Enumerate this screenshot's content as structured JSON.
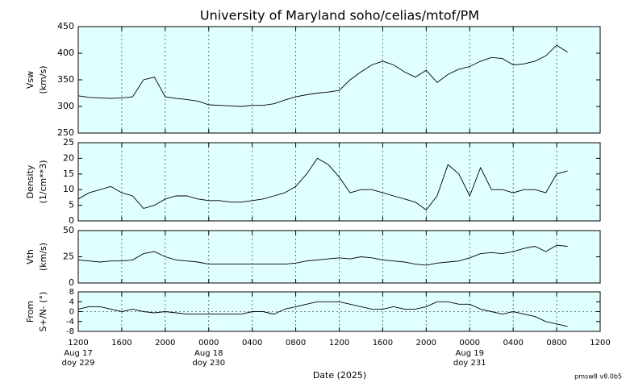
{
  "title": "University of Maryland  soho/celias/mtof/PM",
  "footnote": "pmsw8 v8.0b5",
  "x_axis": {
    "label": "Date (2025)",
    "xlim": [
      "2025-08-17T12:00",
      "2025-08-19T12:00"
    ],
    "xticks": [
      {
        "value": "2025-08-17T12:00",
        "label": "1200"
      },
      {
        "value": "2025-08-17T16:00",
        "label": "1600"
      },
      {
        "value": "2025-08-17T20:00",
        "label": "2000"
      },
      {
        "value": "2025-08-18T00:00",
        "label": "0000"
      },
      {
        "value": "2025-08-18T04:00",
        "label": "0400"
      },
      {
        "value": "2025-08-18T08:00",
        "label": "0800"
      },
      {
        "value": "2025-08-18T12:00",
        "label": "1200"
      },
      {
        "value": "2025-08-18T16:00",
        "label": "1600"
      },
      {
        "value": "2025-08-18T20:00",
        "label": "2000"
      },
      {
        "value": "2025-08-19T00:00",
        "label": "0000"
      },
      {
        "value": "2025-08-19T04:00",
        "label": "0400"
      },
      {
        "value": "2025-08-19T08:00",
        "label": "0800"
      },
      {
        "value": "2025-08-19T12:00",
        "label": "1200"
      }
    ],
    "dates": [
      {
        "value": "2025-08-17T12:00",
        "label": "Aug 17",
        "doy": "doy 229"
      },
      {
        "value": "2025-08-18T00:00",
        "label": "Aug 18",
        "doy": "doy 230"
      },
      {
        "value": "2025-08-19T00:00",
        "label": "Aug 19",
        "doy": "doy 231"
      }
    ],
    "x": [
      "2025-08-17T12:00",
      "2025-08-17T13:00",
      "2025-08-17T14:00",
      "2025-08-17T15:00",
      "2025-08-17T16:00",
      "2025-08-17T17:00",
      "2025-08-17T18:00",
      "2025-08-17T19:00",
      "2025-08-17T20:00",
      "2025-08-17T21:00",
      "2025-08-17T22:00",
      "2025-08-17T23:00",
      "2025-08-18T00:00",
      "2025-08-18T01:00",
      "2025-08-18T02:00",
      "2025-08-18T03:00",
      "2025-08-18T04:00",
      "2025-08-18T05:00",
      "2025-08-18T06:00",
      "2025-08-18T07:00",
      "2025-08-18T08:00",
      "2025-08-18T09:00",
      "2025-08-18T10:00",
      "2025-08-18T11:00",
      "2025-08-18T12:00",
      "2025-08-18T13:00",
      "2025-08-18T14:00",
      "2025-08-18T15:00",
      "2025-08-18T16:00",
      "2025-08-18T17:00",
      "2025-08-18T18:00",
      "2025-08-18T19:00",
      "2025-08-18T20:00",
      "2025-08-18T21:00",
      "2025-08-18T22:00",
      "2025-08-18T23:00",
      "2025-08-19T00:00",
      "2025-08-19T01:00",
      "2025-08-19T02:00",
      "2025-08-19T03:00",
      "2025-08-19T04:00",
      "2025-08-19T05:00",
      "2025-08-19T06:00",
      "2025-08-19T07:00",
      "2025-08-19T08:00",
      "2025-08-19T09:00"
    ]
  },
  "chart_data": [
    {
      "type": "line",
      "ylabel": [
        "Vsw",
        "(km/s)"
      ],
      "color": "#000000",
      "background": "#e0ffff",
      "grid": true,
      "ylim": [
        250,
        450
      ],
      "yticks": [
        250,
        300,
        350,
        400,
        450
      ],
      "values": [
        320,
        317,
        316,
        315,
        316,
        318,
        350,
        355,
        318,
        315,
        313,
        310,
        303,
        302,
        301,
        300,
        302,
        302,
        305,
        312,
        318,
        322,
        325,
        327,
        330,
        350,
        365,
        378,
        385,
        378,
        365,
        355,
        368,
        345,
        360,
        370,
        375,
        385,
        392,
        390,
        378,
        380,
        385,
        395,
        415,
        402
      ]
    },
    {
      "type": "line",
      "ylabel": [
        "Density",
        "(1/cm**3)"
      ],
      "color": "#000000",
      "background": "#e0ffff",
      "grid": true,
      "ylim": [
        0,
        25
      ],
      "yticks": [
        0,
        5,
        10,
        15,
        20,
        25
      ],
      "values": [
        7,
        9,
        10,
        11,
        9,
        8,
        4,
        5,
        7,
        8,
        8,
        7,
        6.5,
        6.5,
        6,
        6,
        6.5,
        7,
        8,
        9,
        11,
        15,
        20,
        18,
        14,
        9,
        10,
        10,
        9,
        8,
        7,
        6,
        3.5,
        8,
        18,
        15,
        8,
        17,
        10,
        10,
        9,
        10,
        10,
        9,
        15,
        16
      ]
    },
    {
      "type": "line",
      "ylabel": [
        "Vth",
        "(km/s)"
      ],
      "color": "#000000",
      "background": "#e0ffff",
      "grid": true,
      "ylim": [
        0,
        50
      ],
      "yticks": [
        0,
        25,
        50
      ],
      "values": [
        22,
        21,
        20,
        21,
        21,
        22,
        28,
        30,
        25,
        22,
        21,
        20,
        18,
        18,
        18,
        18,
        18,
        18,
        18,
        18,
        19,
        21,
        22,
        23,
        24,
        23,
        25,
        24,
        22,
        21,
        20,
        18,
        17,
        19,
        20,
        21,
        24,
        28,
        29,
        28,
        30,
        33,
        35,
        30,
        36,
        35
      ]
    },
    {
      "type": "line",
      "ylabel": [
        "From",
        "S+/N- (°)"
      ],
      "color": "#000000",
      "background": "#e0ffff",
      "grid": true,
      "zero_line": true,
      "ylim": [
        -8,
        8
      ],
      "yticks": [
        -8,
        -4,
        0,
        4,
        8
      ],
      "values": [
        1,
        2,
        2,
        1,
        0,
        1,
        0,
        -0.5,
        0,
        -0.5,
        -1,
        -1,
        -1,
        -1,
        -1,
        -1,
        0,
        0,
        -1,
        1,
        2,
        3,
        4,
        4,
        4,
        3,
        2,
        1,
        1,
        2,
        1,
        1,
        2,
        4,
        4,
        3,
        3,
        1,
        0,
        -1,
        0,
        -1,
        -2,
        -4,
        -5,
        -6
      ]
    }
  ]
}
